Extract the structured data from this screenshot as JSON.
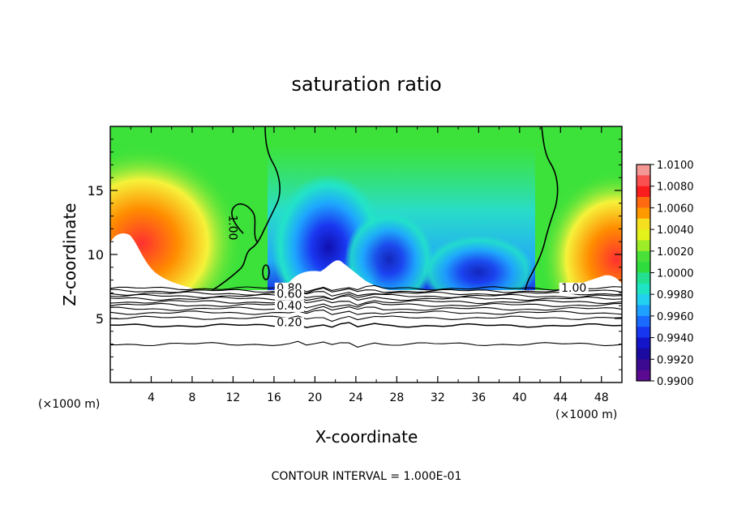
{
  "chart_data": {
    "type": "heatmap",
    "title": "saturation ratio",
    "xlabel": "X-coordinate",
    "ylabel": "Z-coordinate",
    "x_unit_left": "(×1000 m)",
    "x_unit_right": "(×1000 m)",
    "xlim": [
      0,
      50
    ],
    "ylim": [
      0,
      20
    ],
    "x_ticks": [
      4,
      8,
      12,
      16,
      20,
      24,
      28,
      32,
      36,
      40,
      44,
      48
    ],
    "y_ticks": [
      5,
      10,
      15
    ],
    "colorbar": {
      "levels": [
        "1.0100",
        "1.0080",
        "1.0060",
        "1.0040",
        "1.0020",
        "1.0000",
        "0.9980",
        "0.9960",
        "0.9940",
        "0.9920",
        "0.9900"
      ],
      "range": [
        0.99,
        1.01
      ]
    },
    "contour_labels": [
      {
        "text": "0.80",
        "x": 17.5,
        "y": 7.1
      },
      {
        "text": "0.60",
        "x": 17.5,
        "y": 6.6
      },
      {
        "text": "0.40",
        "x": 17.5,
        "y": 5.7
      },
      {
        "text": "0.20",
        "x": 17.5,
        "y": 4.4
      },
      {
        "text": "1.00",
        "x": 45.3,
        "y": 7.1
      },
      {
        "text": "1.00",
        "x": 11.6,
        "y": 12.1
      }
    ],
    "footer": "CONTOUR INTERVAL = 1.000E-01"
  }
}
